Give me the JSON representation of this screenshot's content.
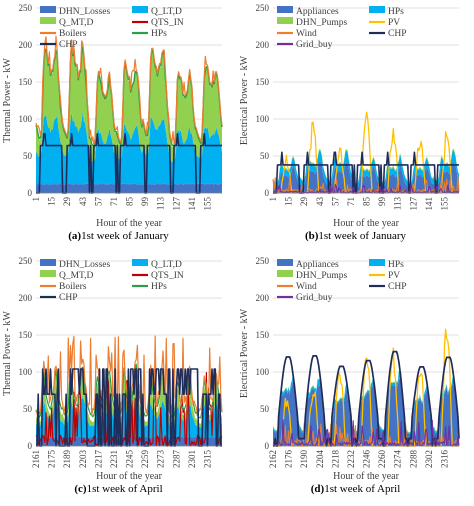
{
  "panels": [
    {
      "id": "a",
      "caption_letter": "(a)",
      "caption_text": "1st week of January",
      "chart_data": {
        "type": "area",
        "ylabel": "Thermal Power - kW",
        "xlabel": "Hour of the year",
        "ylim": [
          0,
          250
        ],
        "yticks": [
          0,
          50,
          100,
          150,
          200,
          250
        ],
        "x_tick_labels": [
          "1",
          "15",
          "29",
          "43",
          "57",
          "71",
          "85",
          "99",
          "113",
          "127",
          "141",
          "155"
        ],
        "legend": [
          "DHN_Losses",
          "Q_LT,D",
          "Q_MT,D",
          "QTS_IN",
          "Boilers",
          "HPs",
          "CHP"
        ],
        "legend_colors": [
          "#4472c4",
          "#00b0f0",
          "#92d050",
          "#c00000",
          "#ed7d31",
          "#2e9e45",
          "#1f2d5a"
        ],
        "period": 24,
        "n": 168,
        "stack": [
          {
            "name": "DHN_Losses",
            "color": "#4472c4",
            "profile": [
              12,
              12,
              12,
              12,
              12,
              12,
              12,
              12,
              12,
              12,
              12,
              12,
              12,
              12,
              12,
              12,
              12,
              12,
              12,
              12,
              12,
              12,
              12,
              12
            ]
          },
          {
            "name": "Q_LT,D",
            "color": "#00b0f0",
            "profile": [
              40,
              38,
              36,
              35,
              35,
              40,
              60,
              78,
              82,
              80,
              76,
              72,
              68,
              66,
              66,
              68,
              72,
              78,
              82,
              80,
              72,
              62,
              52,
              45
            ]
          },
          {
            "name": "Q_MT,D",
            "color": "#92d050",
            "profile": [
              30,
              28,
              25,
              22,
              20,
              25,
              45,
              68,
              80,
              82,
              80,
              76,
              72,
              68,
              66,
              66,
              68,
              74,
              78,
              74,
              62,
              50,
              40,
              34
            ]
          }
        ],
        "lines": [
          {
            "name": "HPs",
            "color": "#2e9e45",
            "width": 1.4,
            "mode": "stacktop",
            "offset": 2
          },
          {
            "name": "Boilers",
            "color": "#ed7d31",
            "width": 1.2,
            "mode": "stacktop",
            "offset": 5,
            "spikes": true
          },
          {
            "name": "CHP",
            "color": "#1f2d5a",
            "width": 1.6,
            "mode": "chp",
            "base": 64,
            "high": 80
          }
        ]
      }
    },
    {
      "id": "b",
      "caption_letter": "(b)",
      "caption_text": "1st week of January",
      "chart_data": {
        "type": "area",
        "ylabel": "Electrical Power - kW",
        "xlabel": "Hour of the year",
        "ylim": [
          0,
          250
        ],
        "yticks": [
          0,
          50,
          100,
          150,
          200,
          250
        ],
        "x_tick_labels": [
          "1",
          "15",
          "29",
          "43",
          "57",
          "71",
          "85",
          "99",
          "113",
          "127",
          "141",
          "155"
        ],
        "legend": [
          "Appliances",
          "HPs",
          "DHN_Pumps",
          "PV",
          "Wind",
          "CHP",
          "Grid_buy"
        ],
        "legend_colors": [
          "#4472c4",
          "#00b0f0",
          "#92d050",
          "#ffc000",
          "#ed7d31",
          "#1f2d5a",
          "#7030a0"
        ],
        "period": 24,
        "n": 168,
        "stack": [
          {
            "name": "Appliances",
            "color": "#4472c4",
            "profile": [
              12,
              10,
              9,
              9,
              10,
              14,
              22,
              30,
              32,
              28,
              26,
              26,
              28,
              26,
              24,
              26,
              30,
              36,
              40,
              38,
              32,
              24,
              18,
              14
            ]
          },
          {
            "name": "HPs",
            "color": "#00b0f0",
            "profile": [
              8,
              7,
              6,
              6,
              6,
              8,
              12,
              14,
              12,
              10,
              9,
              9,
              9,
              9,
              9,
              10,
              12,
              14,
              14,
              13,
              11,
              10,
              9,
              8
            ]
          },
          {
            "name": "DHN_Pumps",
            "color": "#92d050",
            "profile": [
              1,
              1,
              1,
              1,
              1,
              1,
              2,
              2,
              2,
              2,
              2,
              2,
              2,
              2,
              2,
              2,
              2,
              2,
              2,
              2,
              2,
              1,
              1,
              1
            ]
          }
        ],
        "lines": [
          {
            "name": "PV",
            "color": "#ffc000",
            "width": 1.3,
            "mode": "pv",
            "peaks": [
              48,
              95,
              58,
              102,
              90,
              74,
              80
            ]
          },
          {
            "name": "Wind",
            "color": "#ed7d31",
            "width": 1.1,
            "mode": "wind",
            "base": 6
          },
          {
            "name": "CHP",
            "color": "#1f2d5a",
            "width": 1.6,
            "mode": "chp",
            "base": 38,
            "high": 55
          },
          {
            "name": "Grid_buy",
            "color": "#7030a0",
            "width": 1.1,
            "mode": "grid",
            "base": 2
          }
        ]
      }
    },
    {
      "id": "c",
      "caption_letter": "(c)",
      "caption_text": "1st week of April",
      "chart_data": {
        "type": "area",
        "ylabel": "Thermal Power - kW",
        "xlabel": "Hour of the year",
        "ylim": [
          0,
          250
        ],
        "yticks": [
          0,
          50,
          100,
          150,
          200,
          250
        ],
        "x_tick_labels": [
          "2161",
          "2175",
          "2189",
          "2203",
          "2217",
          "2231",
          "2245",
          "2259",
          "2273",
          "2287",
          "2301",
          "2315"
        ],
        "legend": [
          "DHN_Losses",
          "Q_LT,D",
          "Q_MT,D",
          "QTS_IN",
          "Boilers",
          "HPs",
          "CHP"
        ],
        "legend_colors": [
          "#4472c4",
          "#00b0f0",
          "#92d050",
          "#c00000",
          "#ed7d31",
          "#2e9e45",
          "#1f2d5a"
        ],
        "period": 24,
        "n": 168,
        "stack": [
          {
            "name": "DHN_Losses",
            "color": "#4472c4",
            "profile": [
              12,
              12,
              12,
              12,
              12,
              12,
              12,
              12,
              12,
              12,
              12,
              12,
              12,
              12,
              12,
              12,
              12,
              12,
              12,
              12,
              12,
              12,
              12,
              12
            ]
          },
          {
            "name": "Q_LT,D",
            "color": "#00b0f0",
            "profile": [
              18,
              16,
              15,
              15,
              16,
              22,
              38,
              48,
              44,
              36,
              30,
              28,
              26,
              26,
              28,
              32,
              40,
              48,
              50,
              46,
              38,
              30,
              24,
              20
            ]
          },
          {
            "name": "Q_MT,D",
            "color": "#92d050",
            "profile": [
              10,
              8,
              6,
              5,
              6,
              10,
              20,
              30,
              24,
              16,
              12,
              10,
              8,
              8,
              10,
              14,
              22,
              30,
              32,
              26,
              18,
              14,
              12,
              10
            ]
          }
        ],
        "lines": [
          {
            "name": "QTS_IN",
            "color": "#c00000",
            "width": 1.2,
            "mode": "qts"
          },
          {
            "name": "HPs",
            "color": "#2e9e45",
            "width": 1.2,
            "mode": "stacktop",
            "offset": 8
          },
          {
            "name": "Boilers",
            "color": "#ed7d31",
            "width": 1.2,
            "mode": "boilers_apr"
          },
          {
            "name": "CHP",
            "color": "#1f2d5a",
            "width": 1.6,
            "mode": "chp_apr",
            "base": 70,
            "high": 104
          }
        ]
      }
    },
    {
      "id": "d",
      "caption_letter": "(d)",
      "caption_text": "1st week of April",
      "chart_data": {
        "type": "area",
        "ylabel": "Electrical Power - kW",
        "xlabel": "Hour of the year",
        "ylim": [
          0,
          250
        ],
        "yticks": [
          0,
          50,
          100,
          150,
          200,
          250
        ],
        "x_tick_labels": [
          "2162",
          "2176",
          "2190",
          "2204",
          "2218",
          "2232",
          "2246",
          "2260",
          "2274",
          "2288",
          "2302",
          "2316"
        ],
        "legend": [
          "Appliances",
          "HPs",
          "DHN_Pumps",
          "PV",
          "Wind",
          "CHP",
          "Grid_buy"
        ],
        "legend_colors": [
          "#4472c4",
          "#00b0f0",
          "#92d050",
          "#ffc000",
          "#ed7d31",
          "#1f2d5a",
          "#7030a0"
        ],
        "period": 24,
        "n": 168,
        "stack": [
          {
            "name": "Appliances",
            "color": "#4472c4",
            "profile": [
              22,
              20,
              18,
              18,
              20,
              30,
              48,
              62,
              66,
              68,
              70,
              72,
              74,
              72,
              70,
              72,
              76,
              82,
              84,
              80,
              66,
              50,
              36,
              28
            ]
          },
          {
            "name": "HPs",
            "color": "#00b0f0",
            "profile": [
              3,
              3,
              2,
              2,
              2,
              3,
              6,
              8,
              6,
              4,
              3,
              3,
              3,
              3,
              3,
              4,
              6,
              8,
              8,
              7,
              5,
              4,
              3,
              3
            ]
          },
          {
            "name": "DHN_Pumps",
            "color": "#92d050",
            "profile": [
              1,
              1,
              1,
              1,
              1,
              1,
              1,
              1,
              1,
              1,
              1,
              1,
              1,
              1,
              1,
              1,
              1,
              1,
              1,
              1,
              1,
              1,
              1,
              1
            ]
          }
        ],
        "lines": [
          {
            "name": "PV",
            "color": "#ffc000",
            "width": 1.3,
            "mode": "pv",
            "peaks": [
              65,
              82,
              118,
              128,
              130,
              108,
              160
            ]
          },
          {
            "name": "Wind",
            "color": "#ed7d31",
            "width": 1.1,
            "mode": "wind",
            "base": 8
          },
          {
            "name": "CHP",
            "color": "#1f2d5a",
            "width": 1.7,
            "mode": "chp_elec",
            "base": 40,
            "high": 118
          },
          {
            "name": "Grid_buy",
            "color": "#7030a0",
            "width": 1.1,
            "mode": "grid",
            "base": 6
          }
        ]
      }
    }
  ]
}
